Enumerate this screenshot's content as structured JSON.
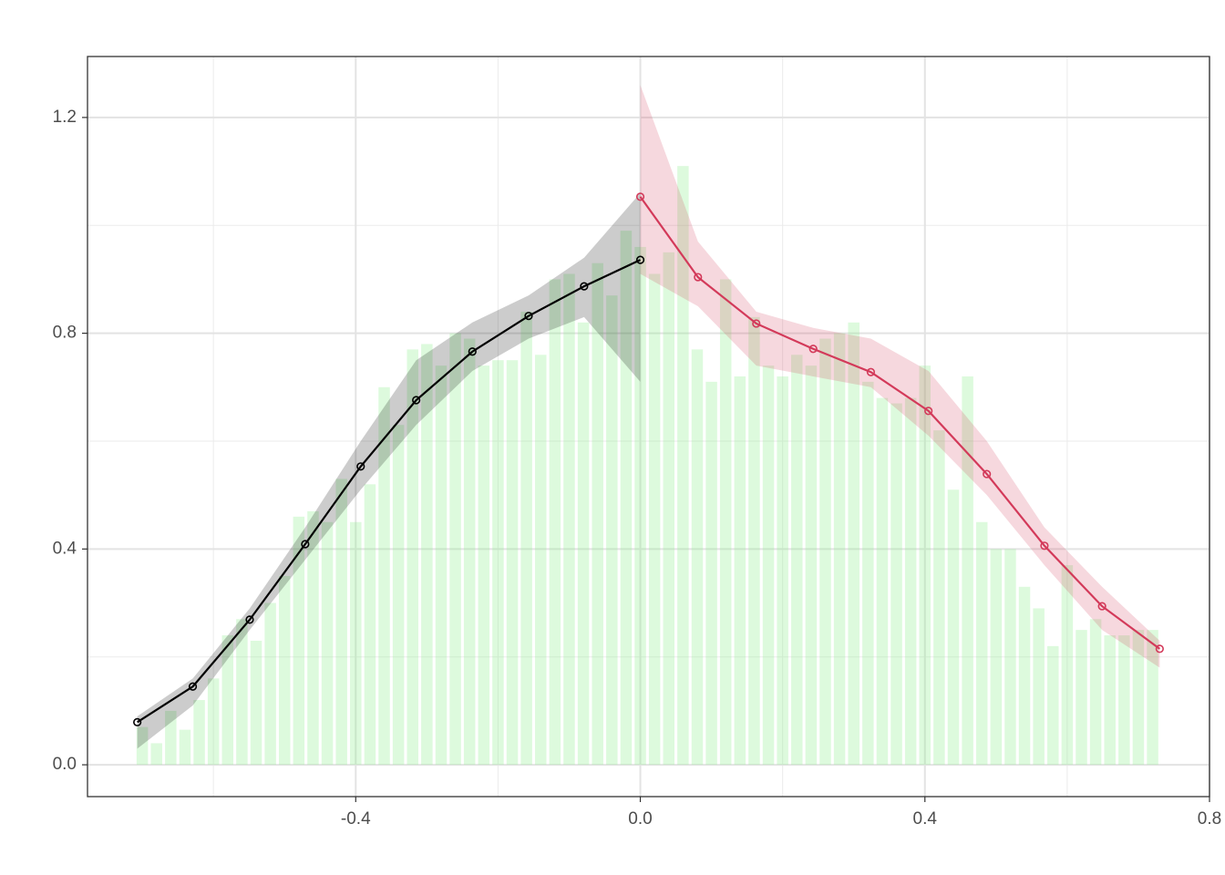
{
  "chart_data": {
    "type": "histogram",
    "bins": [
      -0.71,
      -0.69,
      -0.67,
      -0.65,
      -0.63,
      -0.61,
      -0.59,
      -0.57,
      -0.55,
      -0.53,
      -0.51,
      -0.49,
      -0.47,
      -0.45,
      -0.43,
      -0.41,
      -0.39,
      -0.37,
      -0.35,
      -0.33,
      -0.31,
      -0.29,
      -0.27,
      -0.25,
      -0.23,
      -0.21,
      -0.19,
      -0.17,
      -0.15,
      -0.13,
      -0.11,
      -0.09,
      -0.07,
      -0.05,
      -0.03,
      -0.01,
      0.01,
      0.03,
      0.05,
      0.07,
      0.09,
      0.11,
      0.13,
      0.15,
      0.17,
      0.19,
      0.21,
      0.23,
      0.25,
      0.27,
      0.29,
      0.31,
      0.33,
      0.35,
      0.37,
      0.39,
      0.41,
      0.43,
      0.45,
      0.47,
      0.49,
      0.51,
      0.53,
      0.55,
      0.57,
      0.59,
      0.61,
      0.63,
      0.65,
      0.67,
      0.69,
      0.71,
      0.73
    ],
    "values": [
      0.07,
      0.04,
      0.1,
      0.065,
      0.12,
      0.16,
      0.24,
      0.27,
      0.23,
      0.3,
      0.35,
      0.46,
      0.47,
      0.45,
      0.53,
      0.45,
      0.52,
      0.7,
      0.63,
      0.77,
      0.78,
      0.74,
      0.8,
      0.79,
      0.74,
      0.75,
      0.75,
      0.84,
      0.76,
      0.9,
      0.91,
      0.82,
      0.93,
      0.87,
      0.99,
      0.96,
      0.91,
      0.95,
      1.11,
      0.77,
      0.71,
      0.9,
      0.72,
      0.83,
      0.74,
      0.72,
      0.76,
      0.74,
      0.79,
      0.8,
      0.82,
      0.71,
      0.68,
      0.67,
      0.68,
      0.74,
      0.62,
      0.51,
      0.72,
      0.45,
      0.4,
      0.4,
      0.33,
      0.29,
      0.22,
      0.37,
      0.25,
      0.27,
      0.24,
      0.24,
      0.25,
      0.25
    ],
    "color": "#90ee90",
    "series": [
      {
        "color": "#000000",
        "x": [
          -0.707,
          -0.629,
          -0.549,
          -0.471,
          -0.393,
          -0.315,
          -0.236,
          -0.157,
          -0.079,
          0
        ],
        "values": [
          0.079,
          0.145,
          0.269,
          0.409,
          0.553,
          0.676,
          0.766,
          0.832,
          0.887,
          0.936
        ],
        "lower": [
          0.03,
          0.11,
          0.25,
          0.38,
          0.51,
          0.63,
          0.73,
          0.79,
          0.83,
          0.71
        ],
        "upper": [
          0.09,
          0.16,
          0.29,
          0.44,
          0.6,
          0.75,
          0.82,
          0.87,
          0.94,
          1.06
        ]
      },
      {
        "color": "#d33a5a",
        "x": [
          0,
          0.081,
          0.163,
          0.243,
          0.324,
          0.405,
          0.487,
          0.568,
          0.649,
          0.73
        ],
        "values": [
          1.053,
          0.904,
          0.818,
          0.771,
          0.728,
          0.656,
          0.539,
          0.406,
          0.294,
          0.215
        ],
        "lower": [
          0.91,
          0.85,
          0.74,
          0.72,
          0.7,
          0.61,
          0.5,
          0.37,
          0.25,
          0.18
        ],
        "upper": [
          1.26,
          0.97,
          0.84,
          0.81,
          0.79,
          0.73,
          0.6,
          0.44,
          0.33,
          0.23
        ]
      }
    ],
    "xlim": [
      -0.777,
      0.8
    ],
    "ylim": [
      -0.059,
      1.313
    ],
    "xticks": [
      -0.4,
      {
        "value": 0,
        "label": "0.0"
      },
      0.4,
      0.8
    ],
    "yticks": [
      {
        "value": 0,
        "label": "0.0"
      },
      0.4,
      0.8,
      1.2
    ],
    "xminor": [
      -0.6,
      -0.2,
      0.2,
      0.6
    ],
    "yminor": [
      0.2,
      0.6,
      1.0
    ],
    "grid": true
  }
}
